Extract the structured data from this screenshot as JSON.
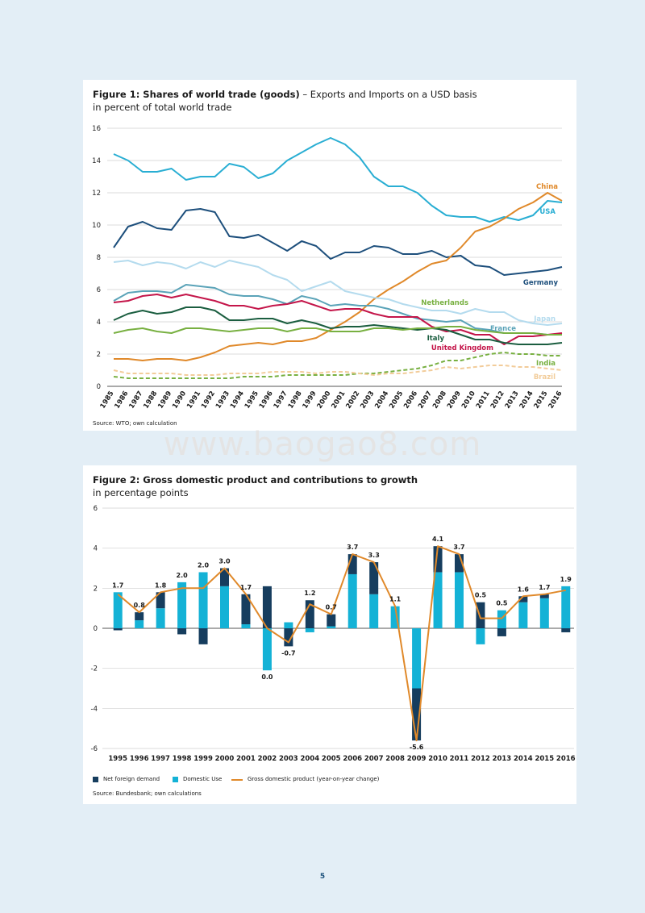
{
  "watermark": "www.baogao8.com",
  "page_number": "5",
  "figure1": {
    "title_bold": "Figure 1: Shares of world trade (goods)",
    "title_rest": " – Exports and Imports on a USD basis",
    "subtitle": "in percent of total world trade",
    "source": "Source: WTO; own calculation"
  },
  "figure2": {
    "title_bold": "Figure 2: Gross domestic product and contributions to growth",
    "subtitle": "in percentage points",
    "source": "Source: Bundesbank; own calculations",
    "legend": {
      "net_foreign": "Net foreign demand",
      "domestic": "Domestic Use",
      "gdp": "Gross domestic product (year-on-year change)"
    }
  },
  "chart_data": [
    {
      "type": "line",
      "title": "Figure 1: Shares of world trade (goods) – Exports and Imports on a USD basis",
      "ylabel": "in percent of total world trade",
      "x": [
        "1985",
        "1986",
        "1987",
        "1988",
        "1989",
        "1990",
        "1991",
        "1992",
        "1993",
        "1994",
        "1995",
        "1996",
        "1997",
        "1998",
        "1999",
        "2000",
        "2001",
        "2002",
        "2003",
        "2004",
        "2005",
        "2006",
        "2007",
        "2008",
        "2009",
        "2010",
        "2011",
        "2012",
        "2013",
        "2014",
        "2015",
        "2016"
      ],
      "ylim": [
        0,
        16
      ],
      "yticks": [
        0,
        2,
        4,
        6,
        8,
        10,
        12,
        14,
        16
      ],
      "grid": true,
      "series": [
        {
          "name": "USA",
          "color": "#29aed3",
          "dash": false,
          "values": [
            14.4,
            14.0,
            13.3,
            13.3,
            13.5,
            12.8,
            13.0,
            13.0,
            13.8,
            13.6,
            12.9,
            13.2,
            14.0,
            14.5,
            15.0,
            15.4,
            15.0,
            14.2,
            13.0,
            12.4,
            12.4,
            12.0,
            11.2,
            10.6,
            10.5,
            10.5,
            10.2,
            10.5,
            10.3,
            10.6,
            11.5,
            11.4
          ]
        },
        {
          "name": "Germany",
          "color": "#1d4f7c",
          "dash": false,
          "values": [
            8.6,
            9.9,
            10.2,
            9.8,
            9.7,
            10.9,
            11.0,
            10.8,
            9.3,
            9.2,
            9.4,
            8.9,
            8.4,
            9.0,
            8.7,
            7.9,
            8.3,
            8.3,
            8.7,
            8.6,
            8.2,
            8.2,
            8.4,
            8.0,
            8.1,
            7.5,
            7.4,
            6.9,
            7.0,
            7.1,
            7.2,
            7.4
          ]
        },
        {
          "name": "China",
          "color": "#e0892a",
          "dash": false,
          "values": [
            1.7,
            1.7,
            1.6,
            1.7,
            1.7,
            1.6,
            1.8,
            2.1,
            2.5,
            2.6,
            2.7,
            2.6,
            2.8,
            2.8,
            3.0,
            3.5,
            4.0,
            4.6,
            5.4,
            6.0,
            6.5,
            7.1,
            7.6,
            7.8,
            8.6,
            9.6,
            9.9,
            10.4,
            11.0,
            11.4,
            12.0,
            11.5
          ]
        },
        {
          "name": "Japan",
          "color": "#b4dbee",
          "dash": false,
          "values": [
            7.7,
            7.8,
            7.5,
            7.7,
            7.6,
            7.3,
            7.7,
            7.4,
            7.8,
            7.6,
            7.4,
            6.9,
            6.6,
            5.9,
            6.2,
            6.5,
            5.9,
            5.7,
            5.5,
            5.4,
            5.1,
            4.9,
            4.7,
            4.7,
            4.5,
            4.8,
            4.6,
            4.6,
            4.1,
            3.9,
            3.8,
            3.9
          ]
        },
        {
          "name": "France",
          "color": "#5aa3b8",
          "dash": false,
          "values": [
            5.3,
            5.8,
            5.9,
            5.9,
            5.8,
            6.3,
            6.2,
            6.1,
            5.7,
            5.6,
            5.6,
            5.4,
            5.1,
            5.6,
            5.4,
            5.0,
            5.1,
            5.0,
            5.0,
            4.8,
            4.5,
            4.2,
            4.1,
            4.0,
            4.1,
            3.6,
            3.5,
            3.3,
            3.3,
            3.3,
            3.2,
            3.2
          ]
        },
        {
          "name": "United Kingdom",
          "color": "#c4164a",
          "dash": false,
          "values": [
            5.2,
            5.3,
            5.6,
            5.7,
            5.5,
            5.7,
            5.5,
            5.3,
            5.0,
            5.0,
            4.8,
            5.0,
            5.1,
            5.3,
            5.0,
            4.7,
            4.8,
            4.8,
            4.5,
            4.3,
            4.3,
            4.3,
            3.7,
            3.4,
            3.5,
            3.2,
            3.2,
            2.6,
            3.1,
            3.1,
            3.2,
            3.3
          ]
        },
        {
          "name": "Italy",
          "color": "#1b5e40",
          "dash": false,
          "values": [
            4.1,
            4.5,
            4.7,
            4.5,
            4.6,
            4.9,
            4.9,
            4.7,
            4.1,
            4.1,
            4.2,
            4.2,
            3.9,
            4.1,
            3.9,
            3.6,
            3.7,
            3.7,
            3.8,
            3.7,
            3.6,
            3.5,
            3.6,
            3.5,
            3.2,
            2.9,
            2.9,
            2.7,
            2.6,
            2.6,
            2.6,
            2.7
          ]
        },
        {
          "name": "Netherlands",
          "color": "#78b041",
          "dash": false,
          "values": [
            3.3,
            3.5,
            3.6,
            3.4,
            3.3,
            3.6,
            3.6,
            3.5,
            3.4,
            3.5,
            3.6,
            3.6,
            3.4,
            3.6,
            3.6,
            3.4,
            3.4,
            3.4,
            3.6,
            3.6,
            3.5,
            3.6,
            3.6,
            3.7,
            3.7,
            3.5,
            3.4,
            3.3,
            3.3,
            3.3,
            3.2,
            3.2
          ]
        },
        {
          "name": "India",
          "color": "#78b041",
          "dash": true,
          "values": [
            0.6,
            0.5,
            0.5,
            0.5,
            0.5,
            0.5,
            0.5,
            0.5,
            0.5,
            0.6,
            0.6,
            0.6,
            0.7,
            0.7,
            0.7,
            0.7,
            0.7,
            0.8,
            0.8,
            0.9,
            1.0,
            1.1,
            1.3,
            1.6,
            1.6,
            1.8,
            2.0,
            2.1,
            2.0,
            2.0,
            1.9,
            1.9
          ]
        },
        {
          "name": "Brazil",
          "color": "#f2cc9a",
          "dash": true,
          "values": [
            1.0,
            0.8,
            0.8,
            0.8,
            0.8,
            0.7,
            0.7,
            0.7,
            0.8,
            0.8,
            0.8,
            0.9,
            0.9,
            0.9,
            0.8,
            0.9,
            0.9,
            0.8,
            0.7,
            0.8,
            0.8,
            0.9,
            1.0,
            1.2,
            1.1,
            1.2,
            1.3,
            1.3,
            1.2,
            1.2,
            1.1,
            1.0
          ]
        }
      ]
    },
    {
      "type": "bar",
      "title": "Figure 2: Gross domestic product and contributions to growth",
      "ylabel": "in percentage points",
      "categories": [
        "1995",
        "1996",
        "1997",
        "1998",
        "1999",
        "2000",
        "2001",
        "2002",
        "2003",
        "2004",
        "2005",
        "2006",
        "2007",
        "2008",
        "2009",
        "2010",
        "2011",
        "2012",
        "2013",
        "2014",
        "2015",
        "2016"
      ],
      "ylim": [
        -6,
        6
      ],
      "yticks": [
        -6,
        -4,
        -2,
        0,
        2,
        4,
        6
      ],
      "grid": true,
      "legend": "bottom",
      "series": [
        {
          "name": "Net foreign demand",
          "color": "#163d5e",
          "values": [
            -0.1,
            0.4,
            0.8,
            -0.3,
            -0.8,
            0.9,
            1.5,
            2.1,
            -0.9,
            1.4,
            0.6,
            1.0,
            1.6,
            0.0,
            -2.6,
            1.3,
            0.9,
            1.3,
            -0.4,
            0.3,
            0.2,
            -0.2
          ]
        },
        {
          "name": "Domestic Use",
          "color": "#14b2d6",
          "values": [
            1.8,
            0.4,
            1.0,
            2.3,
            2.8,
            2.1,
            0.2,
            -2.1,
            0.3,
            -0.2,
            0.1,
            2.7,
            1.7,
            1.1,
            -3.0,
            2.8,
            2.8,
            -0.8,
            0.9,
            1.3,
            1.5,
            2.1
          ]
        },
        {
          "name": "Gross domestic product (year-on-year change)",
          "color": "#e0892a",
          "type": "line",
          "values": [
            1.7,
            0.8,
            1.8,
            2.0,
            2.0,
            3.0,
            1.7,
            0.0,
            -0.7,
            1.2,
            0.7,
            3.7,
            3.3,
            1.1,
            -5.6,
            4.1,
            3.7,
            0.5,
            0.5,
            1.6,
            1.7,
            1.9
          ],
          "labels": [
            "1.7",
            "0.8",
            "1.8",
            "2.0",
            "2.0",
            "3.0",
            "1.7",
            "0.0",
            "-0.7",
            "1.2",
            "0.7",
            "3.7",
            "3.3",
            "1.1",
            "-5.6",
            "4.1",
            "3.7",
            "0.5",
            "0.5",
            "1.6",
            "1.7",
            "1.9"
          ]
        }
      ]
    }
  ]
}
